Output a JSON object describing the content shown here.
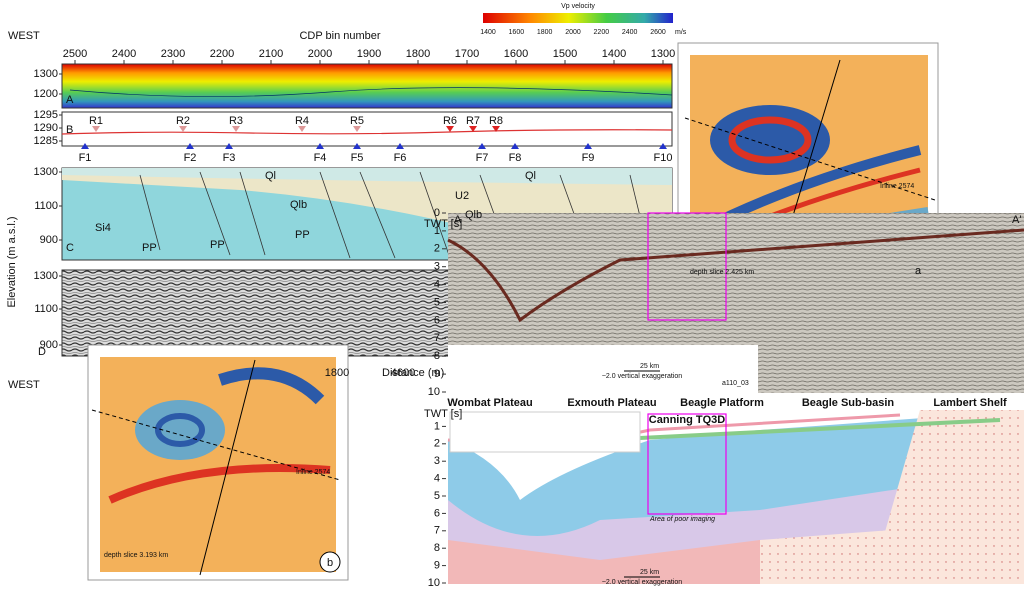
{
  "top_figure": {
    "title_left": "WEST",
    "axis_title": "CDP bin number",
    "colorbar": {
      "title": "Vp velocity",
      "ticks": [
        1400,
        1600,
        1800,
        2000,
        2200,
        2400,
        2600
      ],
      "unit": "m/s"
    },
    "cdp_ticks": [
      2500,
      2400,
      2300,
      2200,
      2100,
      2000,
      1900,
      1800,
      1700,
      1600,
      1500,
      1400,
      1300
    ],
    "panel_a": {
      "label": "A",
      "yticks": [
        1300,
        1200
      ]
    },
    "panel_b": {
      "label": "B",
      "yticks": [
        1295,
        1290,
        1285
      ],
      "receivers": [
        "R1",
        "R2",
        "R3",
        "R4",
        "R5",
        "R6",
        "R7",
        "R8"
      ],
      "faults": [
        "F1",
        "F2",
        "F3",
        "F4",
        "F5",
        "F6",
        "F7",
        "F8",
        "F9",
        "F10"
      ]
    },
    "panel_c": {
      "label": "C",
      "yticks": [
        1300,
        1100,
        900
      ],
      "units": [
        "Si4",
        "PP",
        "PP",
        "PP",
        "Ql",
        "Qlb",
        "U2",
        "Ql",
        "Qlb"
      ]
    },
    "panel_d": {
      "label": "D",
      "yticks": [
        1300,
        1100,
        900
      ]
    },
    "y_axis_title": "Elevation (m a.s.l.)",
    "x_axis_title": "Distance (m)",
    "distance_ticks": [
      1800,
      4600
    ],
    "bottom_left": "WEST"
  },
  "slice_a": {
    "label": "a",
    "caption": "depth slice 2.425 km",
    "line": "Inline 2574"
  },
  "slice_b": {
    "label": "b",
    "caption": "depth slice 3.193 km",
    "line": "Inline 2574"
  },
  "seismic_section": {
    "label": "A",
    "label_end": "A'",
    "axis_title": "TWT [s]",
    "yticks": [
      0,
      1,
      2,
      3,
      4,
      5,
      6,
      7,
      8,
      9,
      10
    ],
    "ylim": [
      0,
      10
    ],
    "scale": "25 km",
    "exaggeration": "~2.0 vertical exaggeration",
    "line_id": "a110_03"
  },
  "interpreted_section": {
    "axis_title": "TWT [s]",
    "yticks": [
      1,
      2,
      3,
      4,
      5,
      6,
      7,
      8,
      9,
      10
    ],
    "ylim": [
      0,
      10
    ],
    "regions": [
      "Wombat Plateau",
      "Exmouth Plateau",
      "Beagle Platform",
      "Beagle Sub-basin",
      "Lambert Shelf"
    ],
    "box_label": "Canning TQ3D",
    "note": "Area of poor imaging",
    "scale": "25 km",
    "exaggeration": "~2.0 vertical exaggeration"
  }
}
